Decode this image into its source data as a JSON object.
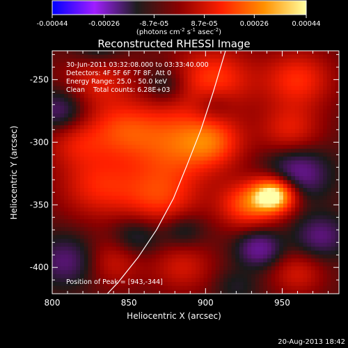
{
  "chart_data": {
    "type": "heatmap",
    "title": "Reconstructed RHESSI Image",
    "xlabel": "Heliocentric X (arcsec)",
    "ylabel": "Heliocentric Y (arcsec)",
    "xlim": [
      800,
      987
    ],
    "ylim": [
      -421,
      -227
    ],
    "x_ticks": [
      800,
      850,
      900,
      950
    ],
    "y_ticks": [
      -250,
      -300,
      -350,
      -400
    ],
    "colorbar": {
      "ticks": [
        "-0.00044",
        "-0.00026",
        "-8.7e-05",
        "8.7e-05",
        "0.00026",
        "0.00044"
      ],
      "tick_values": [
        -0.00044,
        -0.00026,
        -8.7e-05,
        8.7e-05,
        0.00026,
        0.00044
      ],
      "range": [
        -0.00044,
        0.00044
      ],
      "units_prefix": "(photons cm",
      "units_exp1": "-2",
      "units_mid": " s",
      "units_exp2": "-1",
      "units_mid2": " asec",
      "units_exp3": "-2",
      "units_suffix": ")",
      "colors": [
        "#0000ff",
        "#a01eff",
        "#1e1e1e",
        "#8c0000",
        "#ff2000",
        "#ff9000",
        "#ffffa0"
      ]
    },
    "annotations": {
      "time": "30-Jun-2011 03:32:08.000 to 03:33:40.000",
      "detectors": "Detectors: 4F 5F 6F 7F 8F, Att 0",
      "energy": "Energy Range: 25.0 - 50.0 keV",
      "clean": "Clean    Total counts: 6.28E+03",
      "peak": "Position of Peak = [943,-344]"
    },
    "peak": [
      943,
      -344
    ],
    "limb_curve": {
      "x": [
        913,
        905,
        897,
        888,
        879,
        868,
        856,
        843,
        836
      ],
      "y": [
        -227,
        -260,
        -290,
        -318,
        -345,
        -370,
        -392,
        -412,
        -421
      ]
    },
    "blobs": [
      {
        "x": 945,
        "y": -342,
        "amp": 1.05,
        "sigma": 10
      },
      {
        "x": 927,
        "y": -350,
        "amp": 0.55,
        "sigma": 13
      },
      {
        "x": 880,
        "y": -300,
        "amp": 0.55,
        "sigma": 22
      },
      {
        "x": 905,
        "y": -250,
        "amp": 0.5,
        "sigma": 18
      },
      {
        "x": 960,
        "y": -250,
        "amp": 0.45,
        "sigma": 16
      },
      {
        "x": 830,
        "y": -250,
        "amp": 0.35,
        "sigma": 16
      },
      {
        "x": 845,
        "y": -290,
        "amp": 0.4,
        "sigma": 16
      },
      {
        "x": 830,
        "y": -335,
        "amp": 0.4,
        "sigma": 18
      },
      {
        "x": 870,
        "y": -345,
        "amp": 0.45,
        "sigma": 18
      },
      {
        "x": 905,
        "y": -300,
        "amp": 0.4,
        "sigma": 14
      },
      {
        "x": 955,
        "y": -290,
        "amp": 0.35,
        "sigma": 14
      },
      {
        "x": 840,
        "y": -395,
        "amp": 0.3,
        "sigma": 14
      },
      {
        "x": 885,
        "y": -400,
        "amp": 0.3,
        "sigma": 14
      },
      {
        "x": 960,
        "y": -405,
        "amp": 0.3,
        "sigma": 12
      },
      {
        "x": 815,
        "y": -300,
        "amp": 0.3,
        "sigma": 14
      },
      {
        "x": 935,
        "y": -385,
        "amp": -0.45,
        "sigma": 10
      },
      {
        "x": 960,
        "y": -325,
        "amp": -0.45,
        "sigma": 14
      },
      {
        "x": 905,
        "y": -270,
        "amp": -0.25,
        "sigma": 10
      },
      {
        "x": 875,
        "y": -255,
        "amp": -0.25,
        "sigma": 10
      },
      {
        "x": 805,
        "y": -275,
        "amp": -0.35,
        "sigma": 12
      },
      {
        "x": 855,
        "y": -375,
        "amp": -0.3,
        "sigma": 12
      },
      {
        "x": 885,
        "y": -370,
        "amp": -0.25,
        "sigma": 10
      },
      {
        "x": 810,
        "y": -395,
        "amp": -0.35,
        "sigma": 14
      },
      {
        "x": 975,
        "y": -375,
        "amp": -0.35,
        "sigma": 12
      },
      {
        "x": 830,
        "y": -225,
        "amp": -0.25,
        "sigma": 12
      },
      {
        "x": 920,
        "y": -415,
        "amp": -0.15,
        "sigma": 10
      }
    ]
  },
  "footer": {
    "timestamp": "20-Aug-2013 18:42"
  }
}
